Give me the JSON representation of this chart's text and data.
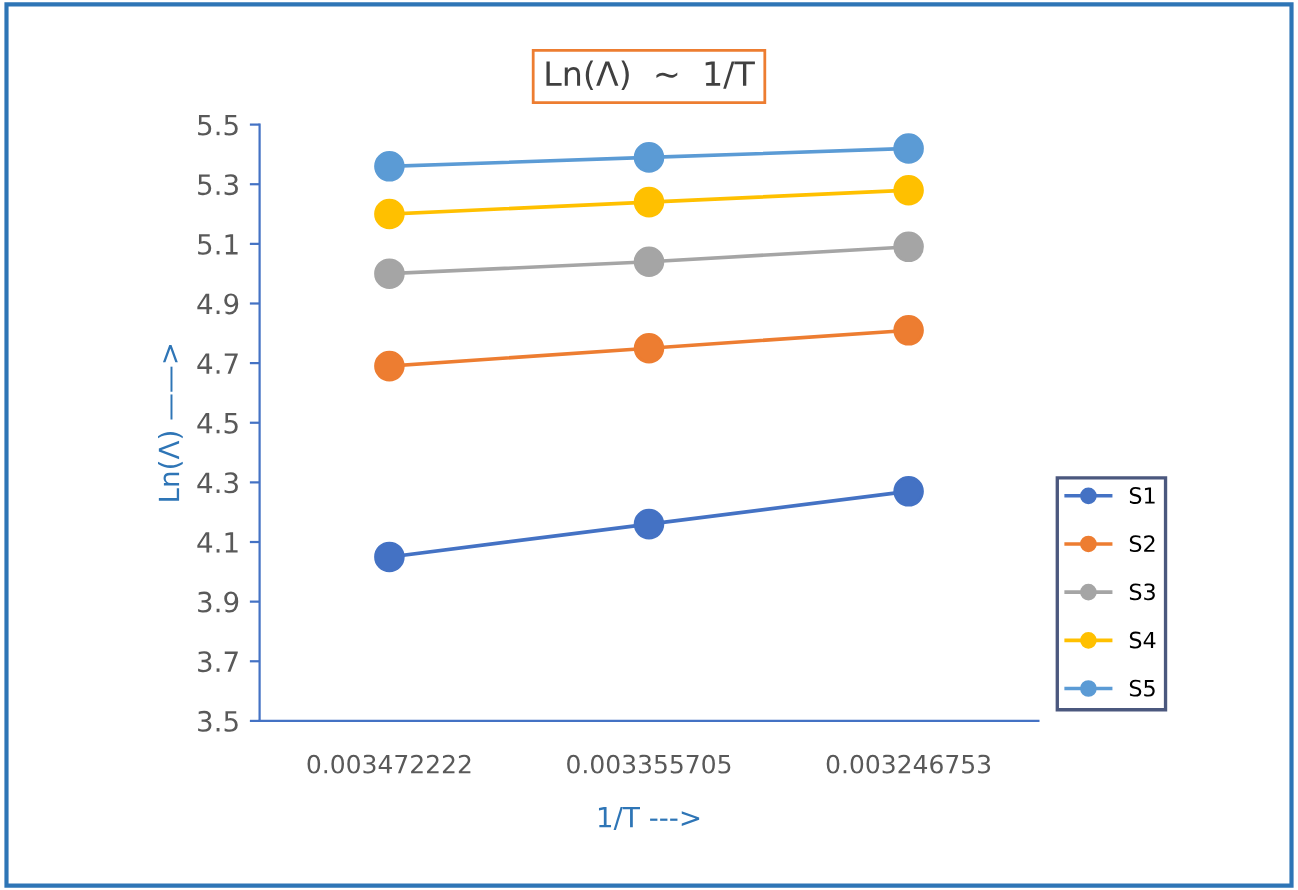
{
  "chart_data": {
    "type": "line",
    "title": "Ln(Λ)  ~  1/T",
    "xlabel": "1/T --->",
    "ylabel": "Ln(Λ) ——>",
    "categories": [
      "0.003472222",
      "0.003355705",
      "0.003246753"
    ],
    "series": [
      {
        "name": "S1",
        "color": "#4472c4",
        "values": [
          4.05,
          4.16,
          4.27
        ]
      },
      {
        "name": "S2",
        "color": "#ed7d31",
        "values": [
          4.69,
          4.75,
          4.81
        ]
      },
      {
        "name": "S3",
        "color": "#a5a5a5",
        "values": [
          5.0,
          5.04,
          5.09
        ]
      },
      {
        "name": "S4",
        "color": "#ffc000",
        "values": [
          5.2,
          5.24,
          5.28
        ]
      },
      {
        "name": "S5",
        "color": "#5b9bd5",
        "values": [
          5.36,
          5.39,
          5.42
        ]
      }
    ],
    "ylim": [
      3.5,
      5.5
    ],
    "yticks": [
      3.5,
      3.7,
      3.9,
      4.1,
      4.3,
      4.5,
      4.7,
      4.9,
      5.1,
      5.3,
      5.5
    ],
    "grid": false,
    "legend": "bottom right",
    "marker": "circle",
    "line_style": "solid"
  }
}
